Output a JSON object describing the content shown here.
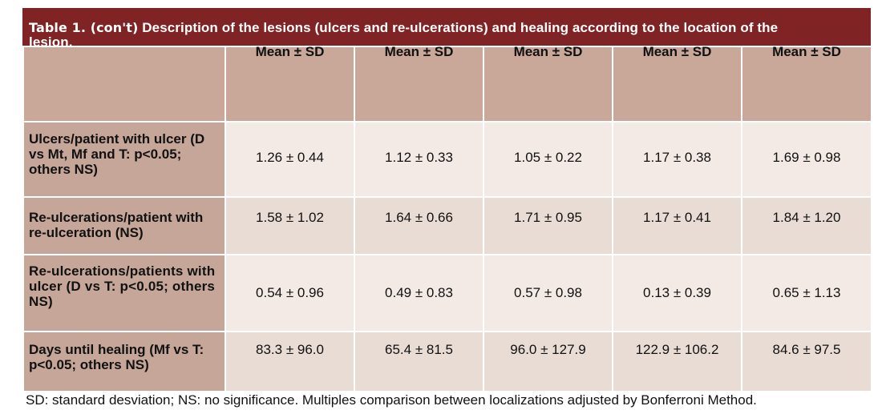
{
  "table": {
    "label": "Table 1. (con't)",
    "title": "Description of the lesions (ulcers and re-ulcerations) and healing according to the location of the lesion.",
    "title_line1": "Description of the lesions (ulcers and re-ulcerations) and healing according to the location of the",
    "title_line2": "lesion.",
    "headers": [
      "",
      "Mean ± SD",
      "Mean ± SD",
      "Mean ± SD",
      "Mean ± SD",
      "Mean ± SD"
    ],
    "rows": [
      {
        "label": "Ulcers/patient with ulcer (D vs Mt, Mf and T: p<0.05; others NS)",
        "values": [
          "1.26 ± 0.44",
          "1.12 ± 0.33",
          "1.05 ± 0.22",
          "1.17 ± 0.38",
          "1.69 ± 0.98"
        ]
      },
      {
        "label": "Re-ulcerations/patient with re-ulceration (NS)",
        "values": [
          "1.58 ± 1.02",
          "1.64 ± 0.66",
          "1.71 ± 0.95",
          "1.17 ± 0.41",
          "1.84 ± 1.20"
        ]
      },
      {
        "label": "Re-ulcerations/patients with ulcer (D vs T: p<0.05; others NS)",
        "values": [
          "0.54 ± 0.96",
          "0.49 ± 0.83",
          "0.57 ± 0.98",
          "0.13 ± 0.39",
          "0.65 ± 1.13"
        ]
      },
      {
        "label": "Days until healing (Mf vs T: p<0.05; others NS)",
        "values": [
          "83.3 ± 96.0",
          "65.4 ± 81.5",
          "96.0 ± 127.9",
          "122.9 ± 106.2",
          "84.6 ± 97.5"
        ]
      }
    ]
  },
  "footnote": "SD: standard desviation; NS: no significance. Multiples comparison between localizations adjusted by Bonferroni Method.",
  "colors": {
    "title_bar": "#7f2324",
    "header_cell": "#c9a799",
    "row_label": "#c6a698",
    "row_light": "#f3eae6",
    "row_dark": "#e9dcd5"
  }
}
